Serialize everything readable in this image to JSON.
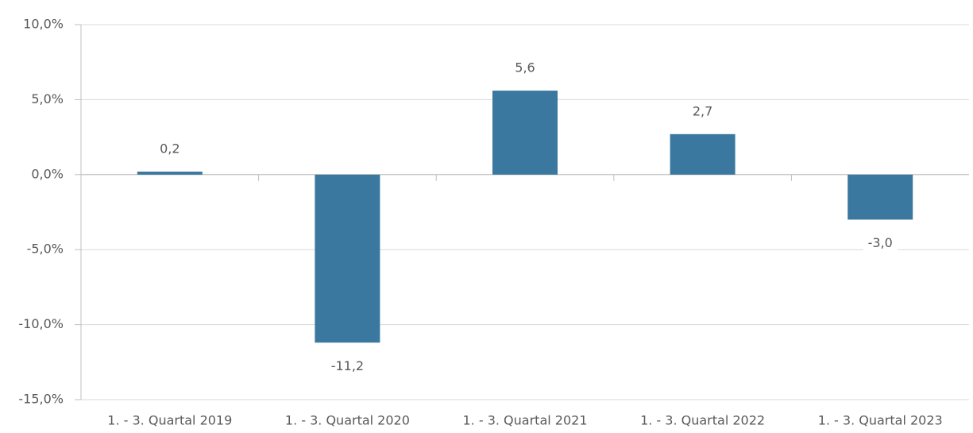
{
  "chart_data": {
    "type": "bar",
    "categories": [
      "1. - 3. Quartal 2019",
      "1. - 3. Quartal 2020",
      "1. - 3. Quartal 2021",
      "1. - 3. Quartal 2022",
      "1. - 3. Quartal 2023"
    ],
    "values": [
      0.2,
      -11.2,
      5.6,
      2.7,
      -3.0
    ],
    "value_labels": [
      "0,2",
      "-11,2",
      "5,6",
      "2,7",
      "-3,0"
    ],
    "color": "#3b789f",
    "ylim": [
      -15,
      10
    ],
    "yticks": [
      {
        "value": 10,
        "label": "10,0%"
      },
      {
        "value": 5,
        "label": "5,0%"
      },
      {
        "value": 0,
        "label": "0,0%"
      },
      {
        "value": -5,
        "label": "-5,0%"
      },
      {
        "value": -10,
        "label": "-10,0%"
      },
      {
        "value": -15,
        "label": "-15,0%"
      }
    ],
    "grid": true
  }
}
